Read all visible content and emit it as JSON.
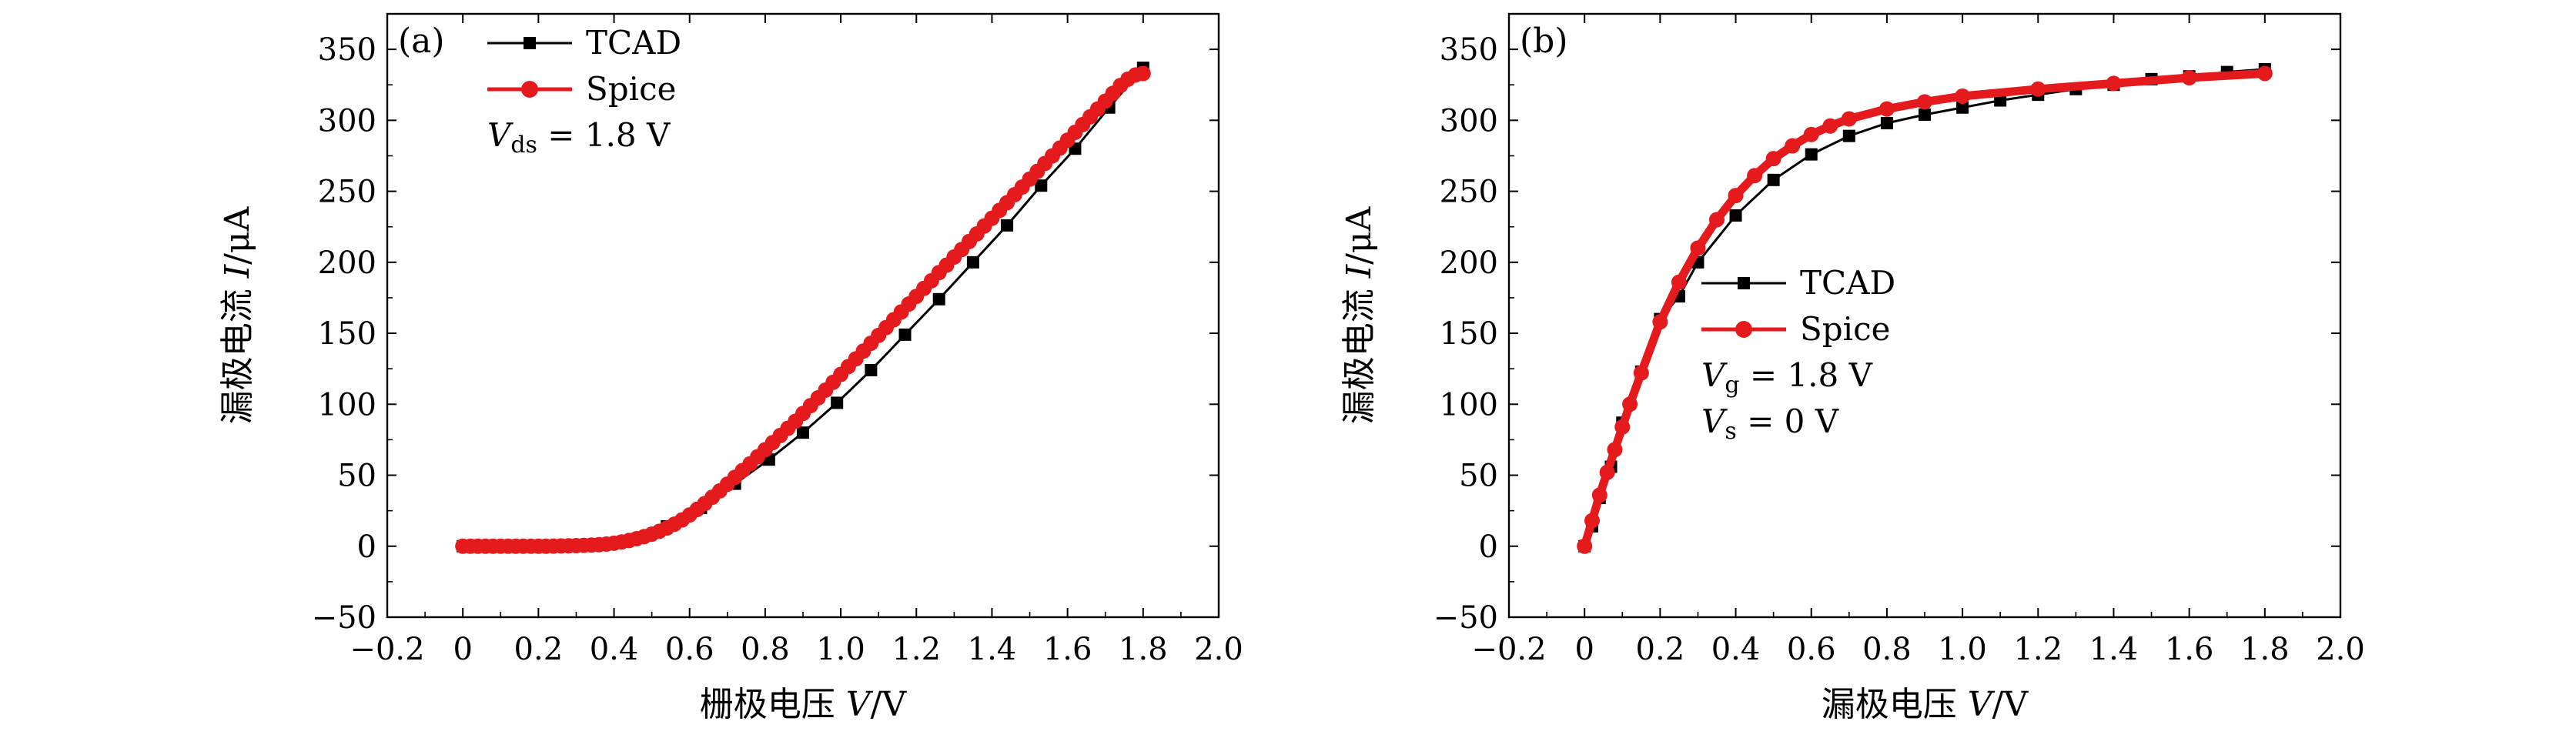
{
  "chart_data": [
    {
      "panel": "(a)",
      "type": "line",
      "xlabel": "栅极电压",
      "xlabel_var": "V",
      "xlabel_unit": "/V",
      "ylabel": "漏极电流",
      "ylabel_var": "I",
      "ylabel_unit": "/μA",
      "xlim": [
        -0.2,
        2.0
      ],
      "ylim": [
        -50,
        375
      ],
      "xticks": [
        -0.2,
        0,
        0.2,
        0.4,
        0.6,
        0.8,
        1.0,
        1.2,
        1.4,
        1.6,
        1.8,
        2.0
      ],
      "xtick_labels": [
        "−0.2",
        "0",
        "0.2",
        "0.4",
        "0.6",
        "0.8",
        "1.0",
        "1.2",
        "1.4",
        "1.6",
        "1.8",
        "2.0"
      ],
      "yticks": [
        -50,
        0,
        50,
        100,
        150,
        200,
        250,
        300,
        350
      ],
      "ytick_labels": [
        "−50",
        "0",
        "50",
        "100",
        "150",
        "200",
        "250",
        "300",
        "350"
      ],
      "legend_position": "top-left",
      "annotations": [
        {
          "var": "V",
          "sub": "ds",
          "value": " = 1.8 V"
        }
      ],
      "series": [
        {
          "name": "TCAD",
          "color": "#000000",
          "marker": "square",
          "x": [
            0,
            0.09,
            0.18,
            0.27,
            0.36,
            0.45,
            0.54,
            0.63,
            0.72,
            0.81,
            0.9,
            0.99,
            1.08,
            1.17,
            1.26,
            1.35,
            1.44,
            1.53,
            1.62,
            1.71,
            1.8
          ],
          "y": [
            0,
            0,
            0,
            0.5,
            1.5,
            5,
            14,
            27,
            44,
            61,
            80,
            101,
            124,
            149,
            174,
            200,
            226,
            254,
            280,
            309,
            337
          ]
        },
        {
          "name": "Spice",
          "color": "#e41a1c",
          "marker": "circle",
          "x": [
            0,
            0.02,
            0.04,
            0.06,
            0.08,
            0.1,
            0.12,
            0.14,
            0.16,
            0.18,
            0.2,
            0.22,
            0.24,
            0.26,
            0.28,
            0.3,
            0.32,
            0.34,
            0.36,
            0.38,
            0.4,
            0.42,
            0.44,
            0.46,
            0.48,
            0.5,
            0.52,
            0.54,
            0.56,
            0.58,
            0.6,
            0.62,
            0.64,
            0.66,
            0.68,
            0.7,
            0.72,
            0.74,
            0.76,
            0.78,
            0.8,
            0.82,
            0.84,
            0.86,
            0.88,
            0.9,
            0.92,
            0.94,
            0.96,
            0.98,
            1.0,
            1.02,
            1.04,
            1.06,
            1.08,
            1.1,
            1.12,
            1.14,
            1.16,
            1.18,
            1.2,
            1.22,
            1.24,
            1.26,
            1.28,
            1.3,
            1.32,
            1.34,
            1.36,
            1.38,
            1.4,
            1.42,
            1.44,
            1.46,
            1.48,
            1.5,
            1.52,
            1.54,
            1.56,
            1.58,
            1.6,
            1.62,
            1.64,
            1.66,
            1.68,
            1.7,
            1.72,
            1.74,
            1.76,
            1.78,
            1.8
          ],
          "y": [
            0,
            0,
            0,
            0,
            0,
            0,
            0,
            0,
            0,
            0,
            0,
            0,
            0.1,
            0.2,
            0.3,
            0.4,
            0.6,
            0.8,
            1.1,
            1.5,
            2.1,
            3.0,
            4.0,
            5.3,
            6.8,
            8.5,
            10.5,
            12.8,
            15.5,
            18.5,
            22,
            25.9,
            30,
            34.5,
            39,
            43.7,
            48.5,
            53.3,
            58,
            63,
            68,
            73,
            78,
            83,
            88,
            93.5,
            99,
            104.5,
            110,
            115.5,
            121,
            126.5,
            132,
            137.5,
            143,
            148.5,
            154,
            159.5,
            165,
            170.6,
            176,
            181.6,
            187,
            192.7,
            198,
            203.7,
            209,
            214.7,
            220,
            225.6,
            231,
            236.6,
            242,
            247.6,
            253,
            258.6,
            264,
            269.6,
            275,
            280.5,
            286,
            291.5,
            297,
            302.5,
            308,
            313.5,
            319,
            324.5,
            329,
            332,
            333
          ]
        }
      ]
    },
    {
      "panel": "(b)",
      "type": "line",
      "xlabel": "漏极电压",
      "xlabel_var": "V",
      "xlabel_unit": "/V",
      "ylabel": "漏极电流",
      "ylabel_var": "I",
      "ylabel_unit": "/μA",
      "xlim": [
        -0.2,
        2.0
      ],
      "ylim": [
        -50,
        375
      ],
      "xticks": [
        -0.2,
        0,
        0.2,
        0.4,
        0.6,
        0.8,
        1.0,
        1.2,
        1.4,
        1.6,
        1.8,
        2.0
      ],
      "xtick_labels": [
        "−0.2",
        "0",
        "0.2",
        "0.4",
        "0.6",
        "0.8",
        "1.0",
        "1.2",
        "1.4",
        "1.6",
        "1.8",
        "2.0"
      ],
      "yticks": [
        -50,
        0,
        50,
        100,
        150,
        200,
        250,
        300,
        350
      ],
      "ytick_labels": [
        "−50",
        "0",
        "50",
        "100",
        "150",
        "200",
        "250",
        "300",
        "350"
      ],
      "legend_position": "center",
      "annotations": [
        {
          "var": "V",
          "sub": "g",
          "value": " = 1.8 V"
        },
        {
          "var": "V",
          "sub": "s",
          "value": " = 0 V"
        }
      ],
      "series": [
        {
          "name": "TCAD",
          "color": "#000000",
          "marker": "square",
          "x": [
            0,
            0.02,
            0.04,
            0.07,
            0.1,
            0.15,
            0.2,
            0.25,
            0.3,
            0.4,
            0.5,
            0.6,
            0.7,
            0.8,
            0.9,
            1.0,
            1.1,
            1.2,
            1.3,
            1.4,
            1.5,
            1.6,
            1.7,
            1.8
          ],
          "y": [
            0,
            14,
            34,
            56,
            87,
            123,
            160,
            176,
            200,
            233,
            258,
            276,
            289,
            298,
            304,
            309,
            314,
            318,
            322,
            325,
            329,
            331,
            334,
            336
          ]
        },
        {
          "name": "Spice",
          "color": "#e41a1c",
          "marker": "circle",
          "x": [
            0,
            0.02,
            0.04,
            0.06,
            0.08,
            0.1,
            0.12,
            0.15,
            0.2,
            0.25,
            0.3,
            0.35,
            0.4,
            0.45,
            0.5,
            0.55,
            0.6,
            0.65,
            0.7,
            0.8,
            0.9,
            1.0,
            1.2,
            1.4,
            1.6,
            1.8
          ],
          "y": [
            0,
            18,
            36,
            52,
            68,
            84,
            100,
            122,
            158,
            186,
            210,
            230,
            247,
            261,
            273,
            282,
            290,
            296,
            301,
            308,
            313,
            317,
            322,
            326,
            330,
            333
          ]
        }
      ]
    }
  ]
}
